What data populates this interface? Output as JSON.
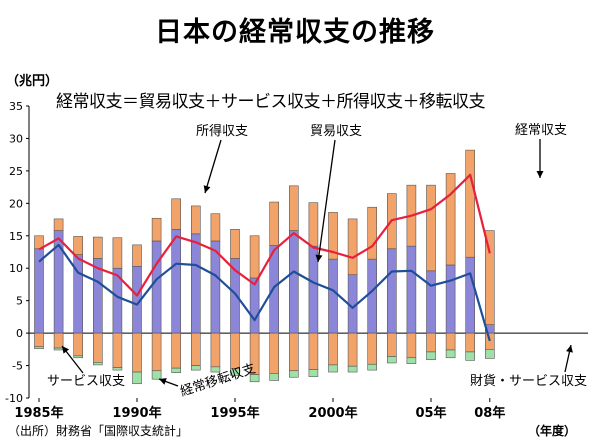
{
  "title": "日本の経常収支の推移",
  "unit": "（兆円）",
  "formula": "経常収支＝貿易収支＋サービス収支＋所得収支＋移転収支",
  "source": "（出所）財務省「国際収支統計」",
  "year_unit": "（年度）",
  "colors": {
    "income": "#f2a36a",
    "trade": "#8c86d8",
    "services": "#f2a36a",
    "transfers": "#9ee0a8",
    "current_line": "#e8203c",
    "goods_services_line": "#1f4e9a"
  },
  "chart_data": {
    "type": "bar",
    "stacked": true,
    "title": "日本の経常収支の推移",
    "subtitle": "経常収支＝貿易収支＋サービス収支＋所得収支＋移転収支",
    "ylabel": "（兆円）",
    "xlabel": "（年度）",
    "ylim": [
      -10,
      35
    ],
    "yticks": [
      -10,
      -5,
      0,
      5,
      10,
      15,
      20,
      25,
      30,
      35
    ],
    "grid": false,
    "categories": [
      "1985",
      "1986",
      "1987",
      "1988",
      "1989",
      "1990",
      "1991",
      "1992",
      "1993",
      "1994",
      "1995",
      "1996",
      "1997",
      "1998",
      "1999",
      "2000",
      "2001",
      "2002",
      "2003",
      "2004",
      "2005",
      "2006",
      "2007",
      "2008"
    ],
    "x_tick_labels": [
      {
        "index": 0,
        "label": "1985年"
      },
      {
        "index": 5,
        "label": "1990年"
      },
      {
        "index": 10,
        "label": "1995年"
      },
      {
        "index": 15,
        "label": "2000年"
      },
      {
        "index": 20,
        "label": "05年"
      },
      {
        "index": 23,
        "label": "08年"
      }
    ],
    "series": [
      {
        "name": "貿易収支",
        "type": "bar",
        "color": "#8c86d8",
        "values": [
          13.0,
          15.8,
          12.1,
          11.5,
          10.0,
          10.3,
          14.2,
          16.0,
          15.3,
          14.2,
          11.5,
          8.5,
          13.5,
          15.8,
          13.4,
          11.4,
          9.0,
          11.4,
          13.0,
          13.4,
          9.6,
          10.5,
          11.7,
          1.3
        ]
      },
      {
        "name": "所得収支",
        "type": "bar",
        "color": "#f2a36a",
        "values": [
          2.0,
          1.8,
          2.8,
          3.3,
          4.7,
          3.3,
          3.5,
          4.7,
          4.3,
          4.2,
          4.5,
          6.5,
          6.7,
          6.9,
          6.7,
          7.2,
          8.6,
          8.0,
          8.5,
          9.4,
          13.2,
          14.1,
          16.5,
          14.5
        ]
      },
      {
        "name": "サービス収支",
        "type": "bar",
        "color": "#f2a36a",
        "values": [
          -2.1,
          -2.3,
          -3.5,
          -4.5,
          -5.3,
          -6.0,
          -5.8,
          -5.4,
          -5.0,
          -5.2,
          -5.5,
          -6.4,
          -6.2,
          -5.8,
          -5.6,
          -4.9,
          -5.1,
          -4.8,
          -3.6,
          -3.8,
          -2.9,
          -2.6,
          -2.9,
          -2.5
        ]
      },
      {
        "name": "移転収支",
        "type": "bar",
        "color": "#9ee0a8",
        "values": [
          -0.3,
          -0.3,
          -0.3,
          -0.4,
          -0.4,
          -1.8,
          -1.3,
          -0.7,
          -0.7,
          -0.8,
          -1.0,
          -1.1,
          -1.1,
          -1.0,
          -1.1,
          -1.1,
          -0.9,
          -0.9,
          -1.0,
          -0.9,
          -1.2,
          -1.2,
          -1.3,
          -1.4
        ]
      },
      {
        "name": "経常収支",
        "type": "line",
        "color": "#e8203c",
        "values": [
          12.9,
          14.6,
          11.5,
          10.0,
          8.9,
          5.8,
          10.7,
          14.9,
          14.0,
          12.7,
          9.7,
          7.5,
          12.8,
          15.4,
          13.2,
          12.5,
          11.6,
          13.4,
          17.4,
          18.1,
          19.1,
          21.4,
          24.4,
          12.3
        ]
      },
      {
        "name": "財貨・サービス収支",
        "type": "line",
        "color": "#1f4e9a",
        "values": [
          11.0,
          13.6,
          9.3,
          7.9,
          5.6,
          4.4,
          8.3,
          10.7,
          10.5,
          8.9,
          6.1,
          2.0,
          7.1,
          9.5,
          7.8,
          6.6,
          3.9,
          6.5,
          9.5,
          9.6,
          7.3,
          8.1,
          9.2,
          -1.2
        ]
      }
    ],
    "annotations": [
      "所得収支",
      "貿易収支",
      "経常収支",
      "サービス収支",
      "経常移転収支",
      "財貨・サービス収支"
    ]
  }
}
